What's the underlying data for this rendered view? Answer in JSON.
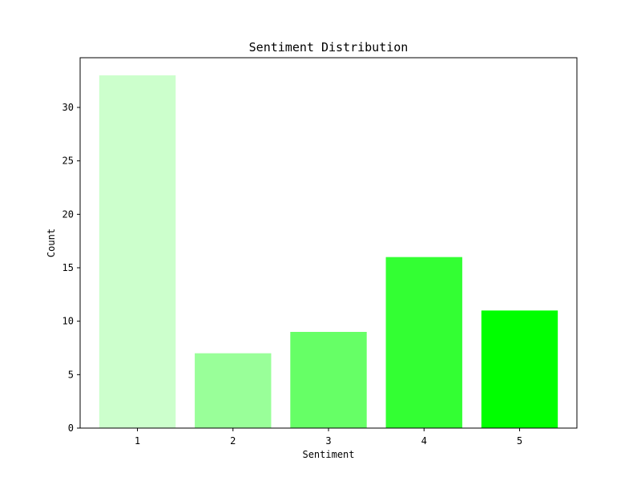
{
  "chart_data": {
    "type": "bar",
    "title": "Sentiment Distribution",
    "xlabel": "Sentiment",
    "ylabel": "Count",
    "categories": [
      "1",
      "2",
      "3",
      "4",
      "5"
    ],
    "values": [
      33,
      7,
      9,
      16,
      11
    ],
    "colors": [
      "#ccffcc",
      "#99ff99",
      "#66ff66",
      "#33ff33",
      "#00ff00"
    ],
    "ylim": [
      0,
      34.65
    ],
    "yticks": [
      0,
      5,
      10,
      15,
      20,
      25,
      30
    ],
    "grid": false,
    "legend": "none"
  }
}
